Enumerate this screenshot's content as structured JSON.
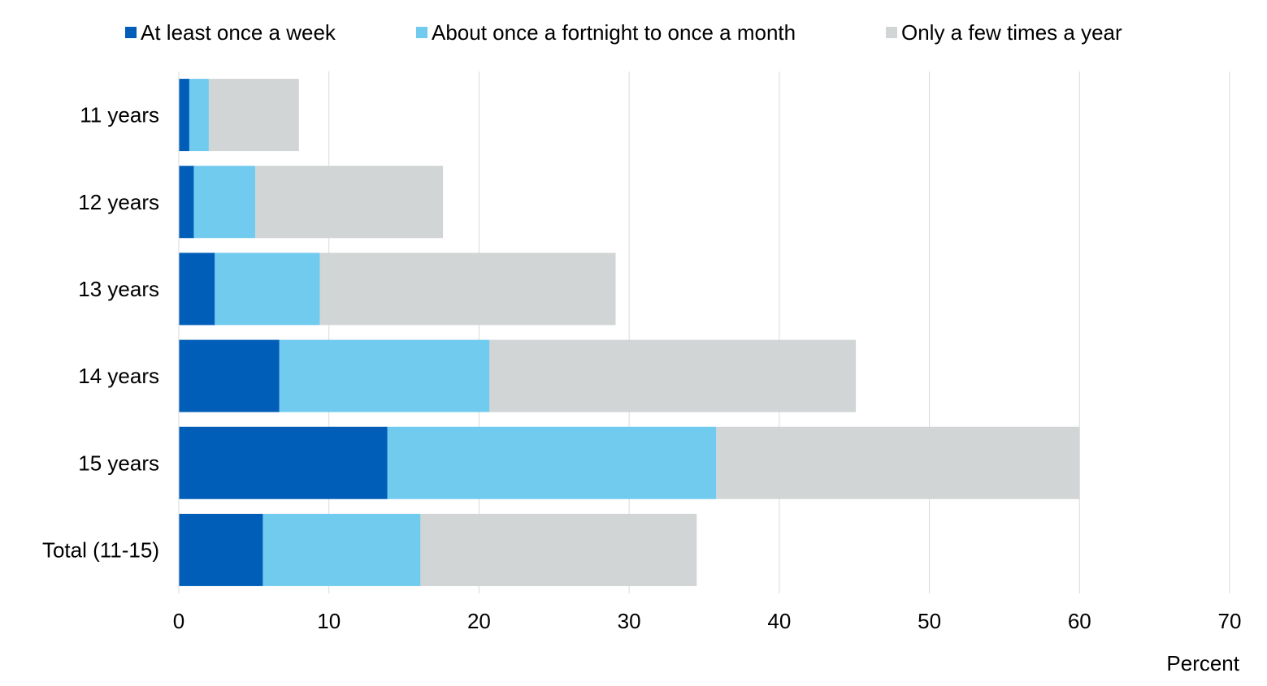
{
  "chart_data": {
    "type": "bar",
    "orientation": "horizontal",
    "stacked": true,
    "categories": [
      "11 years",
      "12 years",
      "13 years",
      "14 years",
      "15 years",
      "Total (11-15)"
    ],
    "series": [
      {
        "name": "At least once a week",
        "color": "#005EB8",
        "values": [
          0.7,
          1.0,
          2.4,
          6.7,
          13.9,
          5.6
        ]
      },
      {
        "name": "About once a fortnight to once a month",
        "color": "#71CBEF",
        "values": [
          1.3,
          4.1,
          7.0,
          14.0,
          21.9,
          10.5
        ]
      },
      {
        "name": "Only a few times a year",
        "color": "#D1D5D5",
        "values": [
          6.0,
          12.5,
          19.7,
          24.4,
          24.2,
          18.4
        ]
      }
    ],
    "xlabel": "Percent",
    "ylabel": "",
    "xlim": [
      0,
      70
    ],
    "xticks": [
      "0",
      "10",
      "20",
      "30",
      "40",
      "50",
      "60",
      "70"
    ],
    "grid": "vertical",
    "legend_position": "top"
  }
}
